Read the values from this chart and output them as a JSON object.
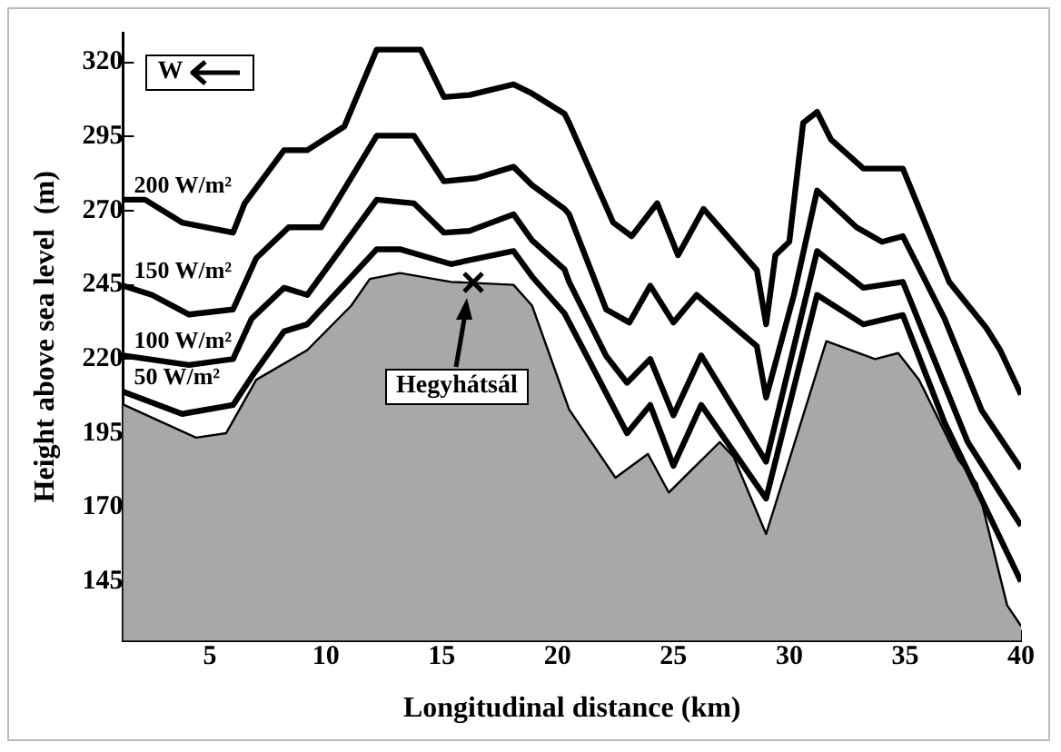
{
  "chart_data": {
    "type": "line",
    "xlabel": "Longitudinal distance (km)",
    "ylabel": "Height above sea level  (m)",
    "xlim": [
      1.25,
      40
    ],
    "xticks": [
      5,
      10,
      15,
      20,
      25,
      30,
      35,
      40
    ],
    "ylim": [
      125,
      330
    ],
    "yticks": [
      145,
      170,
      195,
      220,
      245,
      270,
      295,
      320
    ],
    "grid": false,
    "legend": false,
    "marker": "none",
    "line_style": "solid",
    "series": [
      {
        "type": "area",
        "color": "#a8a8a8",
        "x": [
          1.25,
          1.3,
          4.4,
          5.7,
          7,
          9.2,
          11.1,
          11.9,
          13.2,
          15.4,
          18.1,
          18.9,
          20.5,
          22.5,
          23.9,
          24.8,
          27,
          27.6,
          29,
          31.6,
          33.7,
          34.7,
          35.6,
          37.3,
          38.1,
          39.4,
          40
        ],
        "values": [
          205,
          204.5,
          193.5,
          195,
          213,
          223,
          238,
          247,
          249,
          246,
          245,
          238,
          203,
          180,
          188,
          175,
          192,
          187,
          161,
          226,
          220,
          222,
          213,
          186,
          178,
          137,
          130
        ]
      },
      {
        "name": "50 W/m²",
        "color": "#000000",
        "x": [
          1.25,
          3.8,
          6,
          6.8,
          8.2,
          9.2,
          12.2,
          13.2,
          15.4,
          18.1,
          18.9,
          20.3,
          23,
          24,
          25,
          26.2,
          29,
          31.2,
          33.2,
          34.9,
          36.7,
          40
        ],
        "values": [
          209,
          201.5,
          204.5,
          214,
          229.3,
          231.7,
          257,
          257,
          252,
          256.4,
          247.8,
          235.4,
          195,
          204.5,
          184,
          204.5,
          173,
          241.6,
          231.7,
          234.8,
          198.6,
          145
        ]
      },
      {
        "name": "100 W/m²",
        "color": "#000000",
        "x": [
          1.25,
          4.1,
          6,
          6.8,
          8.2,
          9.2,
          12.2,
          13.8,
          15.1,
          16.2,
          18.1,
          18.9,
          20.3,
          20.5,
          22.1,
          23,
          24,
          25,
          26.2,
          29,
          31.2,
          33.2,
          34.9,
          37.7,
          40
        ],
        "values": [
          221.2,
          218,
          220,
          233.6,
          244,
          241.6,
          273.7,
          272.5,
          262.6,
          263.2,
          268.8,
          260,
          250.2,
          246,
          221,
          212,
          220,
          201,
          221.2,
          185.4,
          256.4,
          244,
          246,
          192,
          163.8
        ]
      },
      {
        "name": "150 W/m²",
        "color": "#000000",
        "x": [
          1.25,
          2.5,
          4.1,
          6,
          7,
          8.4,
          9.8,
          12.2,
          13.8,
          15.1,
          16.5,
          18.1,
          18.9,
          20.3,
          20.5,
          22.1,
          23.1,
          24,
          25,
          26,
          28.6,
          29,
          30.2,
          31.2,
          32.9,
          34,
          34.9,
          36.7,
          38.3,
          40
        ],
        "values": [
          244.7,
          241.6,
          235,
          236.7,
          254,
          264.4,
          264.4,
          295.3,
          295.3,
          279.9,
          281,
          284.8,
          278.6,
          270.6,
          268.8,
          236.7,
          232.3,
          244.7,
          232.3,
          241.6,
          224.3,
          207,
          241.6,
          276.8,
          264.4,
          259.5,
          261.4,
          233.6,
          202.7,
          183
        ]
      },
      {
        "name": "200 W/m²",
        "color": "#000000",
        "x": [
          1.25,
          2.2,
          3.8,
          6,
          6.5,
          8.2,
          9.2,
          10.8,
          12.2,
          14.1,
          15.1,
          16.2,
          18.1,
          18.9,
          20.3,
          20.5,
          22.4,
          23.2,
          24.3,
          25.2,
          26.3,
          28.6,
          29,
          29.4,
          30,
          30.6,
          31.2,
          31.8,
          33.2,
          34.9,
          36.9,
          38.5,
          39.1,
          40
        ],
        "values": [
          273.7,
          273.7,
          266,
          262.6,
          272.5,
          290.4,
          290.4,
          298.4,
          324.3,
          324.3,
          308.3,
          309,
          312.6,
          309.5,
          302.7,
          299.6,
          266,
          261.4,
          272.5,
          255,
          270.6,
          250,
          231.7,
          255,
          259.5,
          299.6,
          303.3,
          294,
          284.2,
          284.2,
          246,
          230.5,
          223,
          208
        ]
      }
    ],
    "annotations": [
      "W",
      "Hegyhátsál"
    ]
  }
}
